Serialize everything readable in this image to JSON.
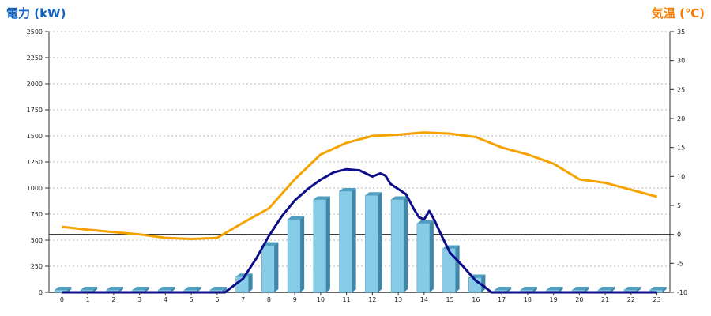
{
  "chart_data": {
    "type": "bar",
    "title_left": "電力 (kW)",
    "title_right": "気温 (℃)",
    "categories": [
      "0",
      "1",
      "2",
      "3",
      "4",
      "5",
      "6",
      "7",
      "8",
      "9",
      "10",
      "11",
      "12",
      "13",
      "14",
      "15",
      "16",
      "17",
      "18",
      "19",
      "20",
      "21",
      "22",
      "23"
    ],
    "y_left": {
      "range": [
        0,
        2500
      ],
      "ticks": [
        0,
        250,
        500,
        750,
        1000,
        1250,
        1500,
        1750,
        2000,
        2250,
        2500
      ]
    },
    "y_right": {
      "range": [
        -10,
        35
      ],
      "ticks": [
        -10,
        -5,
        0,
        5,
        10,
        15,
        20,
        25,
        30,
        35
      ]
    },
    "grid": true,
    "bars": {
      "axis": "left",
      "values": [
        0,
        0,
        0,
        0,
        0,
        0,
        0,
        150,
        450,
        700,
        890,
        970,
        930,
        890,
        660,
        420,
        140,
        0,
        0,
        0,
        0,
        0,
        0,
        0
      ]
    },
    "power_line": {
      "axis": "left",
      "color": "#0d0d8a",
      "x": [
        0,
        6,
        6.3,
        7,
        7.5,
        8,
        8.5,
        9,
        9.5,
        10,
        10.5,
        11,
        11.5,
        12,
        12.3,
        12.5,
        12.7,
        13,
        13.3,
        13.6,
        13.8,
        14,
        14.2,
        14.4,
        14.7,
        15,
        15.5,
        16,
        16.3,
        16.6,
        17,
        23
      ],
      "y": [
        0,
        0,
        0,
        130,
        320,
        540,
        730,
        880,
        990,
        1080,
        1150,
        1180,
        1170,
        1110,
        1140,
        1120,
        1040,
        990,
        940,
        800,
        720,
        700,
        780,
        690,
        530,
        380,
        250,
        110,
        60,
        0,
        0,
        0
      ]
    },
    "temp_line": {
      "axis": "right",
      "color": "#f5a300",
      "x": [
        0,
        1,
        2,
        3,
        4,
        5,
        6,
        7,
        8,
        9,
        10,
        11,
        12,
        13,
        14,
        15,
        16,
        17,
        18,
        19,
        20,
        21,
        22,
        23
      ],
      "y": [
        1.3,
        0.8,
        0.4,
        0,
        -0.6,
        -0.8,
        -0.6,
        2,
        4.5,
        9.5,
        13.8,
        15.8,
        17,
        17.2,
        17.6,
        17.4,
        16.8,
        15,
        13.8,
        12.2,
        9.5,
        8.9,
        7.7,
        6.5
      ]
    }
  }
}
